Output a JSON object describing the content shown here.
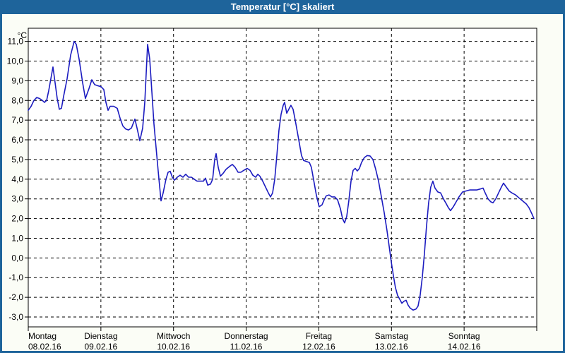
{
  "window": {
    "title": "Temperatur [°C] skaliert"
  },
  "colors": {
    "titlebar": "#1E649B",
    "window_bg": "#FBFDF6",
    "plot_bg": "#FFFFFF",
    "line": "#1C1CC0",
    "grid": "#000000",
    "text": "#000000"
  },
  "chart_data": {
    "type": "line",
    "title": "Temperatur [°C] skaliert",
    "y_unit_label": "°C",
    "ylim": [
      -3.5,
      11.6
    ],
    "grid": true,
    "legend": "none",
    "yticks": [
      {
        "v": 11,
        "label": "11,0"
      },
      {
        "v": 10,
        "label": "10,0"
      },
      {
        "v": 9,
        "label": "9,0"
      },
      {
        "v": 8,
        "label": "8,0"
      },
      {
        "v": 7,
        "label": "7,0"
      },
      {
        "v": 6,
        "label": "6,0"
      },
      {
        "v": 5,
        "label": "5,0"
      },
      {
        "v": 4,
        "label": "4,0"
      },
      {
        "v": 3,
        "label": "3,0"
      },
      {
        "v": 2,
        "label": "2,0"
      },
      {
        "v": 1,
        "label": "1,0"
      },
      {
        "v": 0,
        "label": "0,0"
      },
      {
        "v": -1,
        "label": "-1,0"
      },
      {
        "v": -2,
        "label": "-2,0"
      },
      {
        "v": -3,
        "label": "-3,0"
      }
    ],
    "x_days": [
      {
        "name": "Montag",
        "date": "08.02.16"
      },
      {
        "name": "Dienstag",
        "date": "09.02.16"
      },
      {
        "name": "Mittwoch",
        "date": "10.02.16"
      },
      {
        "name": "Donnerstag",
        "date": "11.02.16"
      },
      {
        "name": "Freitag",
        "date": "12.02.16"
      },
      {
        "name": "Samstag",
        "date": "13.02.16"
      },
      {
        "name": "Sonntag",
        "date": "14.02.16"
      }
    ],
    "series": [
      {
        "name": "Temperatur",
        "unit": "°C",
        "x_unit": "days_from_2016-02-08",
        "points": [
          [
            0.0,
            7.5
          ],
          [
            0.039,
            7.7
          ],
          [
            0.078,
            8.0
          ],
          [
            0.117,
            8.15
          ],
          [
            0.156,
            8.1
          ],
          [
            0.194,
            8.0
          ],
          [
            0.224,
            7.9
          ],
          [
            0.253,
            8.0
          ],
          [
            0.282,
            8.5
          ],
          [
            0.311,
            9.1
          ],
          [
            0.34,
            9.7
          ],
          [
            0.369,
            8.9
          ],
          [
            0.399,
            8.1
          ],
          [
            0.428,
            7.55
          ],
          [
            0.457,
            7.6
          ],
          [
            0.486,
            8.2
          ],
          [
            0.535,
            9.1
          ],
          [
            0.583,
            10.3
          ],
          [
            0.632,
            11.0
          ],
          [
            0.661,
            10.85
          ],
          [
            0.7,
            10.1
          ],
          [
            0.749,
            8.9
          ],
          [
            0.787,
            8.1
          ],
          [
            0.836,
            8.6
          ],
          [
            0.875,
            9.05
          ],
          [
            0.914,
            8.8
          ],
          [
            0.953,
            8.75
          ],
          [
            1.001,
            8.7
          ],
          [
            1.04,
            8.55
          ],
          [
            1.069,
            7.9
          ],
          [
            1.099,
            7.5
          ],
          [
            1.128,
            7.7
          ],
          [
            1.176,
            7.7
          ],
          [
            1.225,
            7.6
          ],
          [
            1.264,
            7.1
          ],
          [
            1.303,
            6.7
          ],
          [
            1.342,
            6.55
          ],
          [
            1.381,
            6.5
          ],
          [
            1.42,
            6.6
          ],
          [
            1.468,
            7.05
          ],
          [
            1.497,
            6.6
          ],
          [
            1.536,
            5.95
          ],
          [
            1.575,
            6.6
          ],
          [
            1.604,
            7.9
          ],
          [
            1.643,
            10.85
          ],
          [
            1.672,
            10.1
          ],
          [
            1.702,
            8.4
          ],
          [
            1.731,
            6.8
          ],
          [
            1.76,
            5.6
          ],
          [
            1.789,
            4.4
          ],
          [
            1.828,
            2.9
          ],
          [
            1.857,
            3.3
          ],
          [
            1.896,
            4.0
          ],
          [
            1.925,
            4.35
          ],
          [
            1.954,
            4.4
          ],
          [
            1.983,
            4.1
          ],
          [
            2.013,
            3.95
          ],
          [
            2.051,
            4.1
          ],
          [
            2.09,
            4.2
          ],
          [
            2.129,
            4.1
          ],
          [
            2.168,
            4.25
          ],
          [
            2.207,
            4.1
          ],
          [
            2.246,
            4.1
          ],
          [
            2.285,
            4.0
          ],
          [
            2.324,
            3.9
          ],
          [
            2.372,
            3.9
          ],
          [
            2.411,
            3.9
          ],
          [
            2.44,
            4.05
          ],
          [
            2.47,
            3.7
          ],
          [
            2.508,
            3.75
          ],
          [
            2.538,
            4.0
          ],
          [
            2.567,
            5.0
          ],
          [
            2.586,
            5.3
          ],
          [
            2.615,
            4.6
          ],
          [
            2.645,
            4.15
          ],
          [
            2.683,
            4.3
          ],
          [
            2.722,
            4.5
          ],
          [
            2.771,
            4.65
          ],
          [
            2.81,
            4.75
          ],
          [
            2.849,
            4.6
          ],
          [
            2.888,
            4.35
          ],
          [
            2.927,
            4.35
          ],
          [
            2.966,
            4.45
          ],
          [
            3.014,
            4.55
          ],
          [
            3.053,
            4.45
          ],
          [
            3.092,
            4.2
          ],
          [
            3.131,
            4.1
          ],
          [
            3.16,
            4.25
          ],
          [
            3.189,
            4.15
          ],
          [
            3.228,
            3.9
          ],
          [
            3.267,
            3.6
          ],
          [
            3.306,
            3.3
          ],
          [
            3.335,
            3.1
          ],
          [
            3.364,
            3.3
          ],
          [
            3.393,
            4.0
          ],
          [
            3.422,
            5.2
          ],
          [
            3.451,
            6.5
          ],
          [
            3.481,
            7.3
          ],
          [
            3.51,
            7.75
          ],
          [
            3.529,
            7.9
          ],
          [
            3.558,
            7.35
          ],
          [
            3.587,
            7.55
          ],
          [
            3.616,
            7.75
          ],
          [
            3.646,
            7.55
          ],
          [
            3.675,
            7.0
          ],
          [
            3.704,
            6.4
          ],
          [
            3.733,
            5.8
          ],
          [
            3.762,
            5.2
          ],
          [
            3.791,
            4.95
          ],
          [
            3.83,
            4.9
          ],
          [
            3.869,
            4.85
          ],
          [
            3.898,
            4.6
          ],
          [
            3.927,
            4.0
          ],
          [
            3.966,
            3.2
          ],
          [
            4.005,
            2.6
          ],
          [
            4.044,
            2.7
          ],
          [
            4.073,
            2.95
          ],
          [
            4.102,
            3.15
          ],
          [
            4.141,
            3.2
          ],
          [
            4.18,
            3.1
          ],
          [
            4.219,
            3.1
          ],
          [
            4.258,
            2.95
          ],
          [
            4.297,
            2.5
          ],
          [
            4.326,
            2.0
          ],
          [
            4.355,
            1.78
          ],
          [
            4.384,
            2.1
          ],
          [
            4.413,
            2.9
          ],
          [
            4.443,
            3.9
          ],
          [
            4.472,
            4.45
          ],
          [
            4.501,
            4.55
          ],
          [
            4.53,
            4.42
          ],
          [
            4.559,
            4.55
          ],
          [
            4.588,
            4.85
          ],
          [
            4.627,
            5.1
          ],
          [
            4.666,
            5.2
          ],
          [
            4.705,
            5.18
          ],
          [
            4.744,
            5.0
          ],
          [
            4.783,
            4.5
          ],
          [
            4.822,
            3.9
          ],
          [
            4.861,
            3.1
          ],
          [
            4.9,
            2.3
          ],
          [
            4.938,
            1.4
          ],
          [
            4.968,
            0.6
          ],
          [
            4.997,
            -0.2
          ],
          [
            5.026,
            -0.9
          ],
          [
            5.055,
            -1.5
          ],
          [
            5.084,
            -1.9
          ],
          [
            5.114,
            -2.1
          ],
          [
            5.143,
            -2.3
          ],
          [
            5.172,
            -2.2
          ],
          [
            5.201,
            -2.15
          ],
          [
            5.23,
            -2.4
          ],
          [
            5.259,
            -2.55
          ],
          [
            5.298,
            -2.65
          ],
          [
            5.337,
            -2.6
          ],
          [
            5.366,
            -2.45
          ],
          [
            5.395,
            -1.9
          ],
          [
            5.424,
            -1.0
          ],
          [
            5.453,
            0.2
          ],
          [
            5.482,
            1.6
          ],
          [
            5.512,
            2.8
          ],
          [
            5.541,
            3.6
          ],
          [
            5.57,
            3.9
          ],
          [
            5.599,
            3.55
          ],
          [
            5.638,
            3.35
          ],
          [
            5.677,
            3.3
          ],
          [
            5.716,
            3.0
          ],
          [
            5.755,
            2.75
          ],
          [
            5.784,
            2.55
          ],
          [
            5.813,
            2.4
          ],
          [
            5.852,
            2.6
          ],
          [
            5.891,
            2.85
          ],
          [
            5.93,
            3.1
          ],
          [
            5.979,
            3.35
          ],
          [
            6.027,
            3.4
          ],
          [
            6.076,
            3.45
          ],
          [
            6.124,
            3.45
          ],
          [
            6.173,
            3.45
          ],
          [
            6.222,
            3.5
          ],
          [
            6.261,
            3.55
          ],
          [
            6.29,
            3.3
          ],
          [
            6.329,
            3.0
          ],
          [
            6.368,
            2.85
          ],
          [
            6.397,
            2.8
          ],
          [
            6.436,
            3.0
          ],
          [
            6.474,
            3.3
          ],
          [
            6.513,
            3.6
          ],
          [
            6.542,
            3.8
          ],
          [
            6.581,
            3.6
          ],
          [
            6.62,
            3.4
          ],
          [
            6.659,
            3.3
          ],
          [
            6.708,
            3.2
          ],
          [
            6.756,
            3.05
          ],
          [
            6.805,
            2.9
          ],
          [
            6.854,
            2.75
          ],
          [
            6.893,
            2.55
          ],
          [
            6.932,
            2.25
          ],
          [
            6.961,
            2.0
          ]
        ]
      }
    ]
  }
}
